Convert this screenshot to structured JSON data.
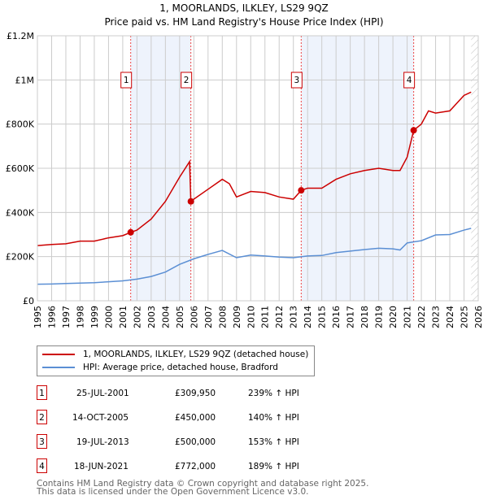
{
  "chart_data": {
    "type": "line",
    "title": "1, MOORLANDS, ILKLEY, LS29 9QZ",
    "subtitle": "Price paid vs. HM Land Registry's House Price Index (HPI)",
    "xlim": [
      1995,
      2026
    ],
    "ylim": [
      0,
      1200000
    ],
    "y_ticks": [
      {
        "v": 0,
        "label": "£0"
      },
      {
        "v": 200000,
        "label": "£200K"
      },
      {
        "v": 400000,
        "label": "£400K"
      },
      {
        "v": 600000,
        "label": "£600K"
      },
      {
        "v": 800000,
        "label": "£800K"
      },
      {
        "v": 1000000,
        "label": "£1M"
      },
      {
        "v": 1200000,
        "label": "£1.2M"
      }
    ],
    "x_ticks": [
      "1995",
      "1996",
      "1997",
      "1998",
      "1999",
      "2000",
      "2001",
      "2002",
      "2003",
      "2004",
      "2005",
      "2006",
      "2007",
      "2008",
      "2009",
      "2010",
      "2011",
      "2012",
      "2013",
      "2014",
      "2015",
      "2016",
      "2017",
      "2018",
      "2019",
      "2020",
      "2021",
      "2022",
      "2023",
      "2024",
      "2025",
      "2026"
    ],
    "grid": true,
    "series": [
      {
        "name": "1, MOORLANDS, ILKLEY, LS29 9QZ (detached house)",
        "color": "#cc0000",
        "x": [
          1995,
          1996,
          1997,
          1998,
          1999,
          2000,
          2001,
          2001.56,
          2002,
          2003,
          2004,
          2005,
          2005.7,
          2005.79,
          2006,
          2007,
          2008,
          2008.5,
          2009,
          2010,
          2011,
          2012,
          2013,
          2013.55,
          2014,
          2015,
          2016,
          2017,
          2018,
          2019,
          2020,
          2020.5,
          2021,
          2021.46,
          2022,
          2022.5,
          2023,
          2024,
          2025,
          2025.5
        ],
        "y": [
          250000,
          255000,
          258000,
          270000,
          270000,
          285000,
          295000,
          309950,
          320000,
          370000,
          450000,
          560000,
          630000,
          450000,
          460000,
          505000,
          550000,
          530000,
          470000,
          495000,
          490000,
          470000,
          460000,
          500000,
          510000,
          510000,
          550000,
          575000,
          590000,
          600000,
          590000,
          590000,
          650000,
          772000,
          800000,
          860000,
          850000,
          860000,
          930000,
          945000
        ]
      },
      {
        "name": "HPI: Average price, detached house, Bradford",
        "color": "#5b8fd4",
        "x": [
          1995,
          1996,
          1997,
          1998,
          1999,
          2000,
          2001,
          2002,
          2003,
          2004,
          2005,
          2006,
          2007,
          2008,
          2009,
          2010,
          2011,
          2012,
          2013,
          2014,
          2015,
          2016,
          2017,
          2018,
          2019,
          2020,
          2020.5,
          2021,
          2022,
          2023,
          2024,
          2025,
          2025.5
        ],
        "y": [
          75000,
          76000,
          78000,
          80000,
          82000,
          86000,
          90000,
          98000,
          110000,
          130000,
          165000,
          190000,
          210000,
          228000,
          195000,
          207000,
          203000,
          198000,
          195000,
          203000,
          205000,
          218000,
          225000,
          232000,
          238000,
          235000,
          230000,
          262000,
          272000,
          298000,
          300000,
          320000,
          328000
        ]
      }
    ],
    "sales": [
      {
        "id": "1",
        "x": 2001.56,
        "date": "25-JUL-2001",
        "price_value": 309950,
        "price": "£309,950",
        "hpi": "239% ↑ HPI"
      },
      {
        "id": "2",
        "x": 2005.79,
        "date": "14-OCT-2005",
        "price_value": 450000,
        "price": "£450,000",
        "hpi": "140% ↑ HPI"
      },
      {
        "id": "3",
        "x": 2013.55,
        "date": "19-JUL-2013",
        "price_value": 500000,
        "price": "£500,000",
        "hpi": "153% ↑ HPI"
      },
      {
        "id": "4",
        "x": 2021.46,
        "date": "18-JUN-2021",
        "price_value": 772000,
        "price": "£772,000",
        "hpi": "189% ↑ HPI"
      }
    ],
    "shaded_ranges": [
      [
        2001.56,
        2005.79
      ],
      [
        2013.55,
        2021.46
      ]
    ],
    "forecast_from": 2025.5
  },
  "footer": {
    "line1": "Contains HM Land Registry data © Crown copyright and database right 2025.",
    "line2": "This data is licensed under the Open Government Licence v3.0."
  }
}
